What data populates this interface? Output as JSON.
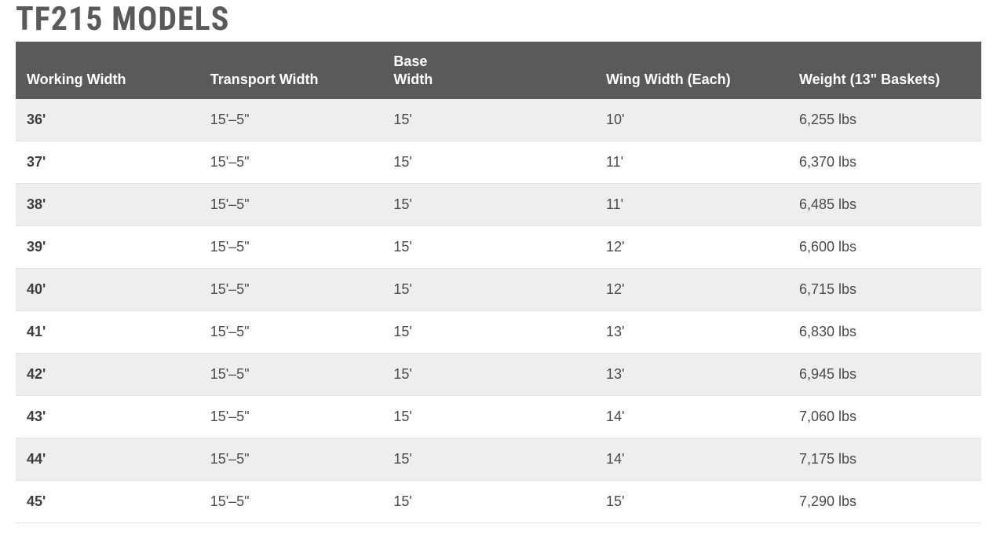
{
  "title": "TF215 MODELS",
  "table": {
    "type": "table",
    "header_bg": "#5a5a5a",
    "header_fg": "#ffffff",
    "row_odd_bg": "#eeeeee",
    "row_even_bg": "#ffffff",
    "cell_fg": "#4a4a4a",
    "first_col_bold": true,
    "header_fontsize": 18,
    "cell_fontsize": 18,
    "border_color": "#e3e3e3",
    "columns": [
      {
        "label": "Working Width",
        "width_pct": 19,
        "align": "left"
      },
      {
        "label": "Transport Width",
        "width_pct": 19,
        "align": "left"
      },
      {
        "label": "Base Width",
        "width_pct": 22,
        "align": "left"
      },
      {
        "label": "Wing Width (Each)",
        "width_pct": 20,
        "align": "left"
      },
      {
        "label": "Weight (13\" Baskets)",
        "width_pct": 20,
        "align": "left"
      }
    ],
    "rows": [
      [
        "36'",
        "15'–5\"",
        "15'",
        "10'",
        "6,255 lbs"
      ],
      [
        "37'",
        "15'–5\"",
        "15'",
        "11'",
        "6,370 lbs"
      ],
      [
        "38'",
        "15'–5\"",
        "15'",
        "11'",
        "6,485 lbs"
      ],
      [
        "39'",
        "15'–5\"",
        "15'",
        "12'",
        "6,600 lbs"
      ],
      [
        "40'",
        "15'–5\"",
        "15'",
        "12'",
        "6,715 lbs"
      ],
      [
        "41'",
        "15'–5\"",
        "15'",
        "13'",
        "6,830 lbs"
      ],
      [
        "42'",
        "15'–5\"",
        "15'",
        "13'",
        "6,945 lbs"
      ],
      [
        "43'",
        "15'–5\"",
        "15'",
        "14'",
        "7,060 lbs"
      ],
      [
        "44'",
        "15'–5\"",
        "15'",
        "14'",
        "7,175 lbs"
      ],
      [
        "45'",
        "15'–5\"",
        "15'",
        "15'",
        "7,290 lbs"
      ]
    ]
  }
}
